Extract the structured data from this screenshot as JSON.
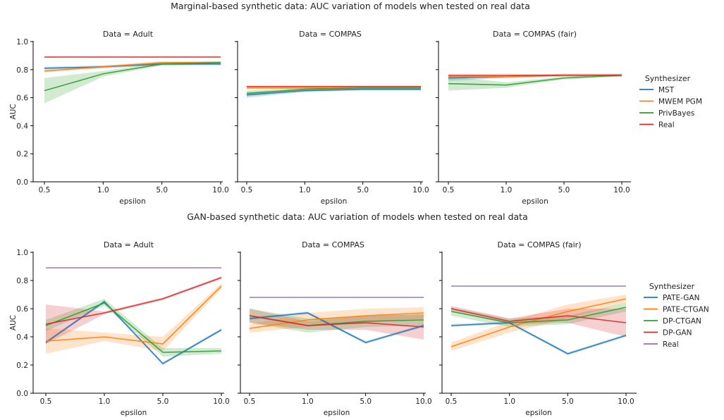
{
  "figure": {
    "top_title": "Marginal-based synthetic data: AUC variation of models when tested on real data",
    "bottom_title": "GAN-based synthetic data: AUC variation of models when tested on real data"
  },
  "chart_data": [
    {
      "type": "line",
      "title": "Data = Adult",
      "xlabel": "epsilon",
      "ylabel": "AUC",
      "categories": [
        "0.5",
        "1.0",
        "5.0",
        "10.0"
      ],
      "ylim": [
        0,
        1
      ],
      "yticks": [
        "0.0",
        "0.2",
        "0.4",
        "0.6",
        "0.8",
        "1.0"
      ],
      "legend_title": "Synthesizer",
      "legend_position": "right",
      "series": [
        {
          "name": "MST",
          "values": [
            0.81,
            0.82,
            0.84,
            0.84
          ],
          "lower": [
            0.8,
            0.81,
            0.83,
            0.83
          ],
          "upper": [
            0.82,
            0.83,
            0.85,
            0.85
          ]
        },
        {
          "name": "MWEM PGM",
          "values": [
            0.79,
            0.82,
            0.85,
            0.85
          ],
          "lower": [
            0.78,
            0.81,
            0.84,
            0.84
          ],
          "upper": [
            0.8,
            0.83,
            0.86,
            0.86
          ]
        },
        {
          "name": "PrivBayes",
          "values": [
            0.65,
            0.77,
            0.84,
            0.85
          ],
          "lower": [
            0.56,
            0.75,
            0.83,
            0.84
          ],
          "upper": [
            0.74,
            0.79,
            0.85,
            0.86
          ]
        },
        {
          "name": "Real",
          "values": [
            0.89,
            0.89,
            0.89,
            0.89
          ]
        }
      ]
    },
    {
      "type": "line",
      "title": "Data = COMPAS",
      "xlabel": "epsilon",
      "categories": [
        "0.5",
        "1.0",
        "5.0",
        "10.0"
      ],
      "ylim": [
        0,
        1
      ],
      "series": [
        {
          "name": "MST",
          "values": [
            0.62,
            0.65,
            0.66,
            0.66
          ],
          "lower": [
            0.6,
            0.64,
            0.65,
            0.65
          ],
          "upper": [
            0.64,
            0.66,
            0.67,
            0.67
          ]
        },
        {
          "name": "MWEM PGM",
          "values": [
            0.67,
            0.67,
            0.67,
            0.67
          ],
          "lower": [
            0.66,
            0.66,
            0.66,
            0.66
          ],
          "upper": [
            0.68,
            0.68,
            0.68,
            0.68
          ]
        },
        {
          "name": "PrivBayes",
          "values": [
            0.63,
            0.66,
            0.67,
            0.67
          ],
          "lower": [
            0.61,
            0.65,
            0.66,
            0.66
          ],
          "upper": [
            0.65,
            0.67,
            0.68,
            0.68
          ]
        },
        {
          "name": "Real",
          "values": [
            0.68,
            0.68,
            0.68,
            0.68
          ]
        }
      ]
    },
    {
      "type": "line",
      "title": "Data = COMPAS (fair)",
      "xlabel": "epsilon",
      "categories": [
        "0.5",
        "1.0",
        "5.0",
        "10.0"
      ],
      "ylim": [
        0,
        1
      ],
      "series": [
        {
          "name": "MST",
          "values": [
            0.74,
            0.75,
            0.76,
            0.76
          ],
          "lower": [
            0.72,
            0.74,
            0.75,
            0.75
          ],
          "upper": [
            0.76,
            0.76,
            0.77,
            0.77
          ]
        },
        {
          "name": "MWEM PGM",
          "values": [
            0.75,
            0.75,
            0.76,
            0.76
          ],
          "lower": [
            0.74,
            0.74,
            0.75,
            0.75
          ],
          "upper": [
            0.76,
            0.76,
            0.77,
            0.77
          ]
        },
        {
          "name": "PrivBayes",
          "values": [
            0.7,
            0.69,
            0.74,
            0.76
          ],
          "lower": [
            0.65,
            0.67,
            0.73,
            0.75
          ],
          "upper": [
            0.75,
            0.71,
            0.75,
            0.77
          ]
        },
        {
          "name": "Real",
          "values": [
            0.76,
            0.76,
            0.76,
            0.76
          ]
        }
      ]
    },
    {
      "type": "line",
      "title": "Data = Adult",
      "xlabel": "epsilon",
      "ylabel": "AUC",
      "categories": [
        "0.5",
        "1.0",
        "5.0",
        "10.0"
      ],
      "ylim": [
        0,
        1
      ],
      "yticks": [
        "0.0",
        "0.2",
        "0.4",
        "0.6",
        "0.8",
        "1.0"
      ],
      "legend_title": "Synthesizer",
      "legend_position": "right",
      "series": [
        {
          "name": "PATE-GAN",
          "values": [
            0.36,
            0.65,
            0.21,
            0.45
          ],
          "lower": [
            0.35,
            0.64,
            0.2,
            0.44
          ],
          "upper": [
            0.37,
            0.66,
            0.22,
            0.46
          ]
        },
        {
          "name": "PATE-CTGAN",
          "values": [
            0.37,
            0.4,
            0.35,
            0.76
          ],
          "lower": [
            0.28,
            0.37,
            0.3,
            0.74
          ],
          "upper": [
            0.46,
            0.43,
            0.4,
            0.78
          ]
        },
        {
          "name": "DP-CTGAN",
          "values": [
            0.48,
            0.64,
            0.29,
            0.3
          ],
          "lower": [
            0.44,
            0.62,
            0.26,
            0.28
          ],
          "upper": [
            0.52,
            0.67,
            0.32,
            0.32
          ]
        },
        {
          "name": "DP-GAN",
          "values": [
            0.49,
            0.57,
            0.67,
            0.82
          ],
          "lower": [
            0.35,
            0.56,
            0.66,
            0.81
          ],
          "upper": [
            0.63,
            0.58,
            0.68,
            0.83
          ]
        },
        {
          "name": "Real",
          "values": [
            0.89,
            0.89,
            0.89,
            0.89
          ]
        }
      ]
    },
    {
      "type": "line",
      "title": "Data = COMPAS",
      "xlabel": "epsilon",
      "categories": [
        "0.5",
        "1.0",
        "5.0",
        "10.0"
      ],
      "ylim": [
        0,
        1
      ],
      "series": [
        {
          "name": "PATE-GAN",
          "values": [
            0.53,
            0.57,
            0.36,
            0.48
          ],
          "lower": [
            0.52,
            0.56,
            0.35,
            0.47
          ],
          "upper": [
            0.54,
            0.58,
            0.37,
            0.49
          ]
        },
        {
          "name": "PATE-CTGAN",
          "values": [
            0.46,
            0.52,
            0.55,
            0.57
          ],
          "lower": [
            0.43,
            0.47,
            0.5,
            0.53
          ],
          "upper": [
            0.49,
            0.57,
            0.6,
            0.61
          ]
        },
        {
          "name": "DP-CTGAN",
          "values": [
            0.55,
            0.48,
            0.51,
            0.52
          ],
          "lower": [
            0.5,
            0.43,
            0.47,
            0.48
          ],
          "upper": [
            0.6,
            0.53,
            0.55,
            0.56
          ]
        },
        {
          "name": "DP-GAN",
          "values": [
            0.55,
            0.48,
            0.5,
            0.47
          ],
          "lower": [
            0.5,
            0.45,
            0.45,
            0.38
          ],
          "upper": [
            0.6,
            0.51,
            0.55,
            0.56
          ]
        },
        {
          "name": "Real",
          "values": [
            0.68,
            0.68,
            0.68,
            0.68
          ]
        }
      ]
    },
    {
      "type": "line",
      "title": "Data = COMPAS (fair)",
      "xlabel": "epsilon",
      "categories": [
        "0.5",
        "1.0",
        "5.0",
        "10.0"
      ],
      "ylim": [
        0,
        1
      ],
      "series": [
        {
          "name": "PATE-GAN",
          "values": [
            0.48,
            0.5,
            0.28,
            0.41
          ],
          "lower": [
            0.47,
            0.49,
            0.27,
            0.4
          ],
          "upper": [
            0.49,
            0.51,
            0.29,
            0.42
          ]
        },
        {
          "name": "PATE-CTGAN",
          "values": [
            0.33,
            0.47,
            0.58,
            0.67
          ],
          "lower": [
            0.3,
            0.43,
            0.53,
            0.64
          ],
          "upper": [
            0.36,
            0.51,
            0.63,
            0.7
          ]
        },
        {
          "name": "DP-CTGAN",
          "values": [
            0.58,
            0.5,
            0.52,
            0.61
          ],
          "lower": [
            0.55,
            0.47,
            0.49,
            0.58
          ],
          "upper": [
            0.61,
            0.53,
            0.55,
            0.64
          ]
        },
        {
          "name": "DP-GAN",
          "values": [
            0.6,
            0.51,
            0.55,
            0.5
          ],
          "lower": [
            0.58,
            0.49,
            0.5,
            0.4
          ],
          "upper": [
            0.62,
            0.53,
            0.6,
            0.6
          ]
        },
        {
          "name": "Real",
          "values": [
            0.76,
            0.76,
            0.76,
            0.76
          ]
        }
      ]
    }
  ],
  "legends": {
    "top": {
      "title": "Synthesizer",
      "items": [
        {
          "name": "MST",
          "color": "#1f77b4"
        },
        {
          "name": "MWEM PGM",
          "color": "#ff7f0e"
        },
        {
          "name": "PrivBayes",
          "color": "#2ca02c"
        },
        {
          "name": "Real",
          "color": "#d62728"
        }
      ]
    },
    "bottom": {
      "title": "Synthesizer",
      "items": [
        {
          "name": "PATE-GAN",
          "color": "#1f77b4"
        },
        {
          "name": "PATE-CTGAN",
          "color": "#ff7f0e"
        },
        {
          "name": "DP-CTGAN",
          "color": "#2ca02c"
        },
        {
          "name": "DP-GAN",
          "color": "#d62728"
        },
        {
          "name": "Real",
          "color": "#9467bd"
        }
      ]
    }
  }
}
